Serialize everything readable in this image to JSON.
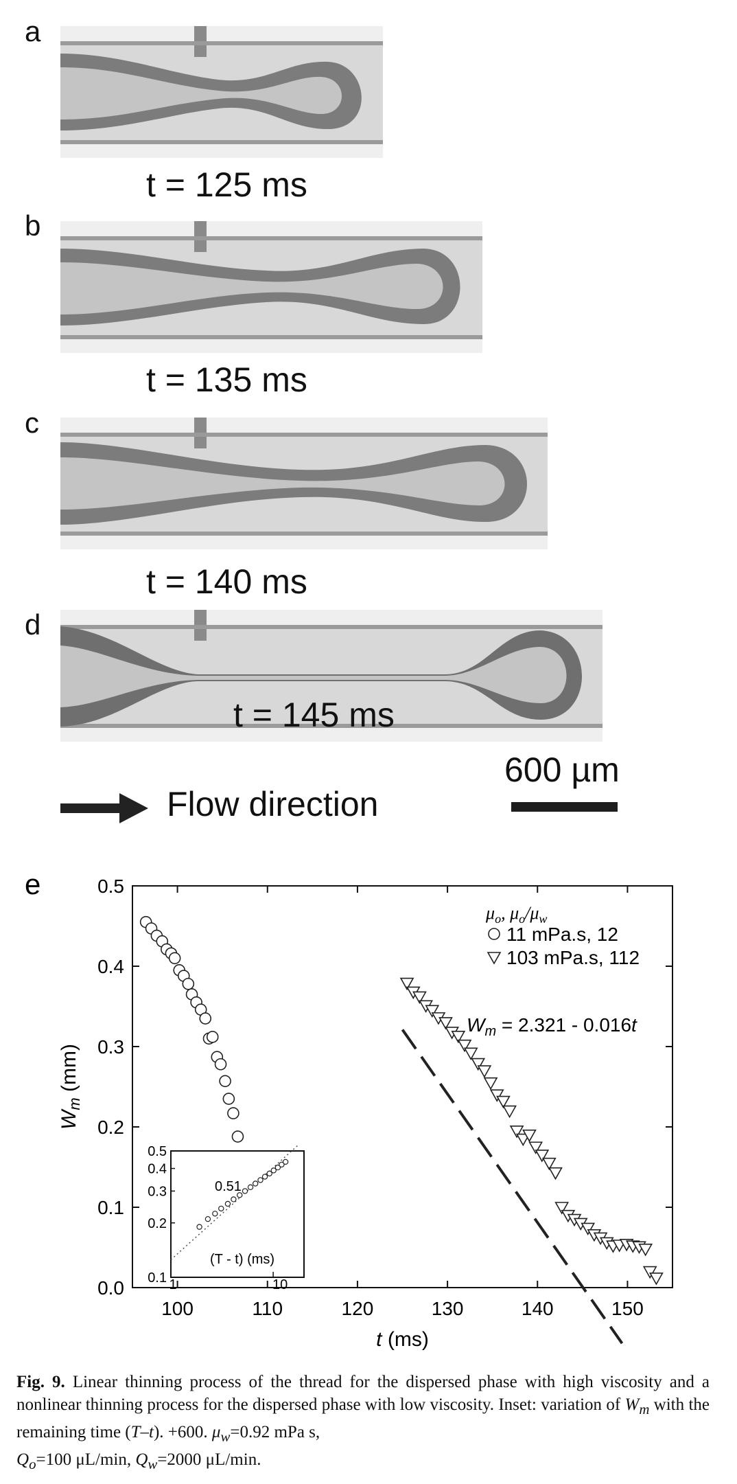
{
  "panels": [
    {
      "letter": "a",
      "time_label": "t = 125 ms"
    },
    {
      "letter": "b",
      "time_label": "t = 135 ms"
    },
    {
      "letter": "c",
      "time_label": "t = 140 ms"
    },
    {
      "letter": "d",
      "time_label": "t = 145 ms"
    }
  ],
  "flow_label": "Flow direction",
  "scale_label": "600 µm",
  "chart_panel_letter": "e",
  "chart_data": {
    "type": "scatter",
    "xlabel": "t (ms)",
    "ylabel": "W_m (mm)",
    "xlim": [
      95,
      155
    ],
    "ylim": [
      0,
      0.5
    ],
    "xticks": [
      100,
      110,
      120,
      130,
      140,
      150
    ],
    "yticks": [
      0.0,
      0.1,
      0.2,
      0.3,
      0.4,
      0.5
    ],
    "legend_title": "μo, μo/μw",
    "legend_position": "top-right",
    "series": [
      {
        "name": "11 mPa.s, 12",
        "marker": "circle",
        "x": [
          96.5,
          97.1,
          97.7,
          98.3,
          98.8,
          99.3,
          99.7,
          100.2,
          100.7,
          101.2,
          101.6,
          102.1,
          102.6,
          103.1,
          103.5,
          103.9,
          104.4,
          104.8,
          105.3,
          105.7,
          106.2,
          106.7
        ],
        "y": [
          0.455,
          0.447,
          0.438,
          0.431,
          0.421,
          0.416,
          0.41,
          0.395,
          0.388,
          0.378,
          0.365,
          0.355,
          0.346,
          0.335,
          0.31,
          0.312,
          0.287,
          0.278,
          0.257,
          0.235,
          0.217,
          0.188
        ]
      },
      {
        "name": "103 mPa.s, 112",
        "marker": "triangle-down",
        "x": [
          125.5,
          126.2,
          126.9,
          127.6,
          128.3,
          129.0,
          129.8,
          130.5,
          131.2,
          131.9,
          132.6,
          133.4,
          134.1,
          134.8,
          135.5,
          136.2,
          136.9,
          137.7,
          138.4,
          139.1,
          139.8,
          140.5,
          141.3,
          142.0,
          142.7,
          143.4,
          144.1,
          144.8,
          145.6,
          146.3,
          147.0,
          147.7,
          148.4,
          149.1,
          149.9,
          150.6,
          151.3,
          152.0,
          152.5,
          153.2
        ],
        "y": [
          0.379,
          0.368,
          0.362,
          0.351,
          0.345,
          0.336,
          0.33,
          0.318,
          0.313,
          0.302,
          0.292,
          0.279,
          0.27,
          0.255,
          0.24,
          0.232,
          0.22,
          0.195,
          0.185,
          0.19,
          0.175,
          0.165,
          0.155,
          0.143,
          0.1,
          0.09,
          0.085,
          0.08,
          0.074,
          0.066,
          0.062,
          0.056,
          0.052,
          0.053,
          0.054,
          0.052,
          0.051,
          0.048,
          0.02,
          0.012
        ]
      }
    ],
    "fit_line": {
      "label": "Wm = 2.321 - 0.016t",
      "intercept": 2.321,
      "slope": -0.016,
      "x_range": [
        125,
        149.4
      ],
      "style": "dashed"
    },
    "inset": {
      "type": "scatter",
      "xscale": "log",
      "yscale": "log",
      "xlim": [
        1,
        20
      ],
      "ylim": [
        0.1,
        0.5
      ],
      "xtick_labels": [
        "1",
        "10"
      ],
      "ytick_labels": [
        "0.5",
        "0.4",
        "0.3",
        "0.2",
        "0.1"
      ],
      "slope_label": "0.51",
      "xlabel": "(T - t) (ms)",
      "points": {
        "x": [
          1.9,
          2.3,
          2.7,
          3.1,
          3.6,
          4.1,
          4.7,
          5.3,
          6.0,
          6.7,
          7.5,
          8.3,
          9.2,
          10.1,
          11.1,
          12.1,
          13.2
        ],
        "y": [
          0.19,
          0.21,
          0.225,
          0.24,
          0.255,
          0.27,
          0.285,
          0.3,
          0.315,
          0.33,
          0.345,
          0.36,
          0.375,
          0.39,
          0.405,
          0.42,
          0.435
        ]
      },
      "guide_line": {
        "style": "dotted",
        "slope": 0.51
      }
    }
  },
  "caption": {
    "fig_label": "Fig. 9.",
    "text_1": " Linear thinning process of the thread for the dispersed phase with high viscosity and a nonlinear thinning process for the dispersed phase with low viscosity. Inset: variation of ",
    "wm": "W",
    "wm_sub": "m",
    "text_2": " with the remaining time (",
    "tt": "T–t",
    "text_3": "). +600. ",
    "mu_w": "μ",
    "mu_w_sub": "w",
    "text_4": "=0.92 mPa s,",
    "q_o": "Q",
    "q_o_sub": "o",
    "text_5": "=100 μL/min, ",
    "q_w": "Q",
    "q_w_sub": "w",
    "text_6": "=2000 μL/min."
  }
}
